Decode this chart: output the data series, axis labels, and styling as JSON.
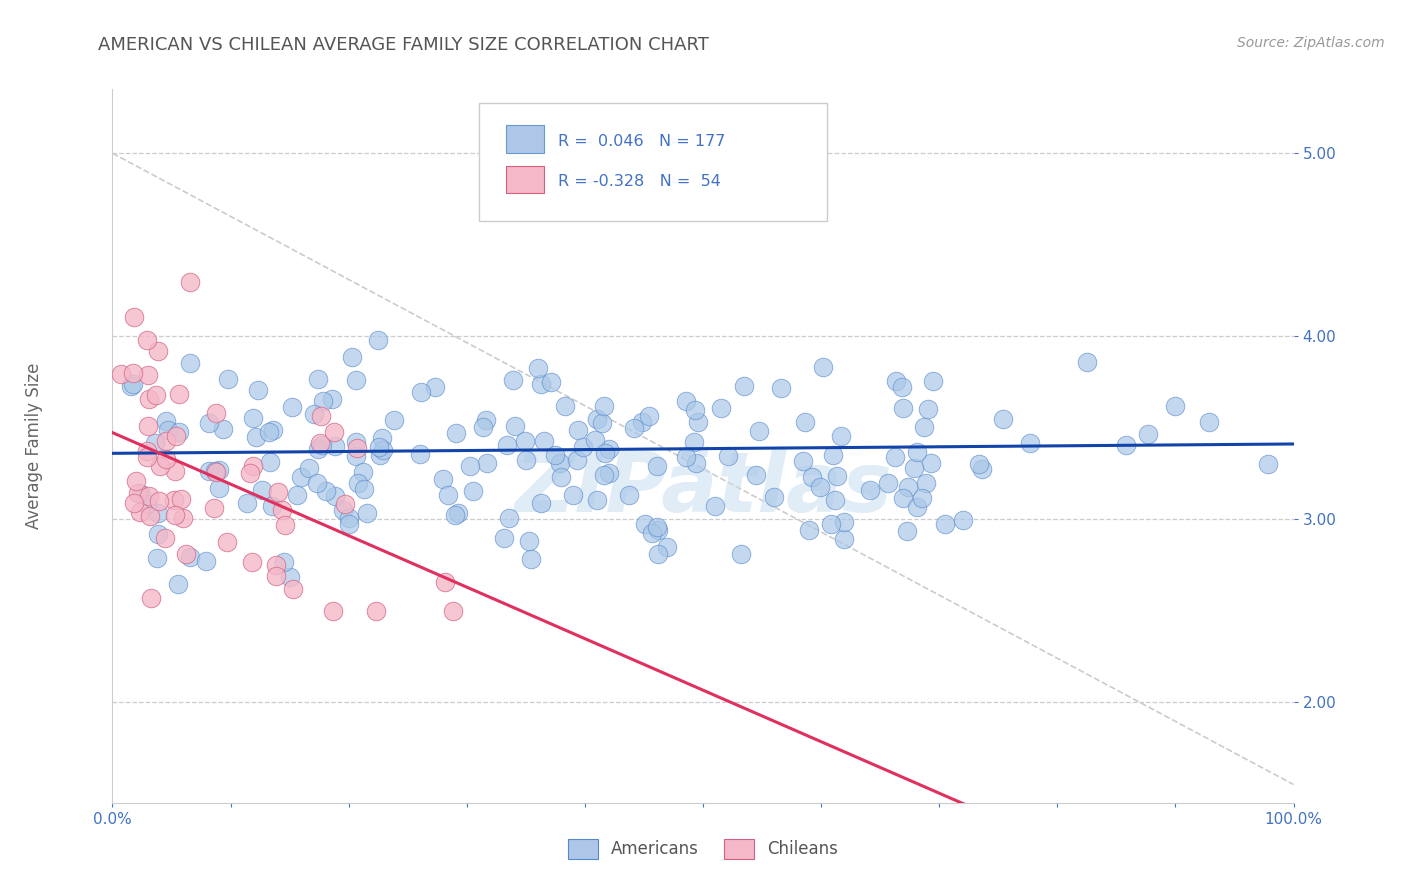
{
  "title": "AMERICAN VS CHILEAN AVERAGE FAMILY SIZE CORRELATION CHART",
  "source_text": "Source: ZipAtlas.com",
  "ylabel": "Average Family Size",
  "xlim": [
    0,
    1
  ],
  "ylim": [
    1.45,
    5.35
  ],
  "yticks": [
    2.0,
    3.0,
    4.0,
    5.0
  ],
  "xtick_labels": [
    "0.0%",
    "",
    "",
    "",
    "",
    "",
    "",
    "",
    "",
    "",
    "100.0%"
  ],
  "xtick_values": [
    0.0,
    0.1,
    0.2,
    0.3,
    0.4,
    0.5,
    0.6,
    0.7,
    0.8,
    0.9,
    1.0
  ],
  "americans_color": "#aac8e8",
  "americans_edge": "#5588cc",
  "chileans_color": "#f4b8c8",
  "chileans_edge": "#d06080",
  "blue_line_color": "#1144aa",
  "pink_line_color": "#e03060",
  "diag_line_color": "#cccccc",
  "background_color": "#ffffff",
  "watermark_color": "#c8ddf0",
  "R_american": 0.046,
  "N_american": 177,
  "R_chilean": -0.328,
  "N_chilean": 54,
  "title_color": "#555555",
  "axis_label_color": "#666666",
  "tick_color": "#4472c4",
  "grid_color": "#cccccc"
}
